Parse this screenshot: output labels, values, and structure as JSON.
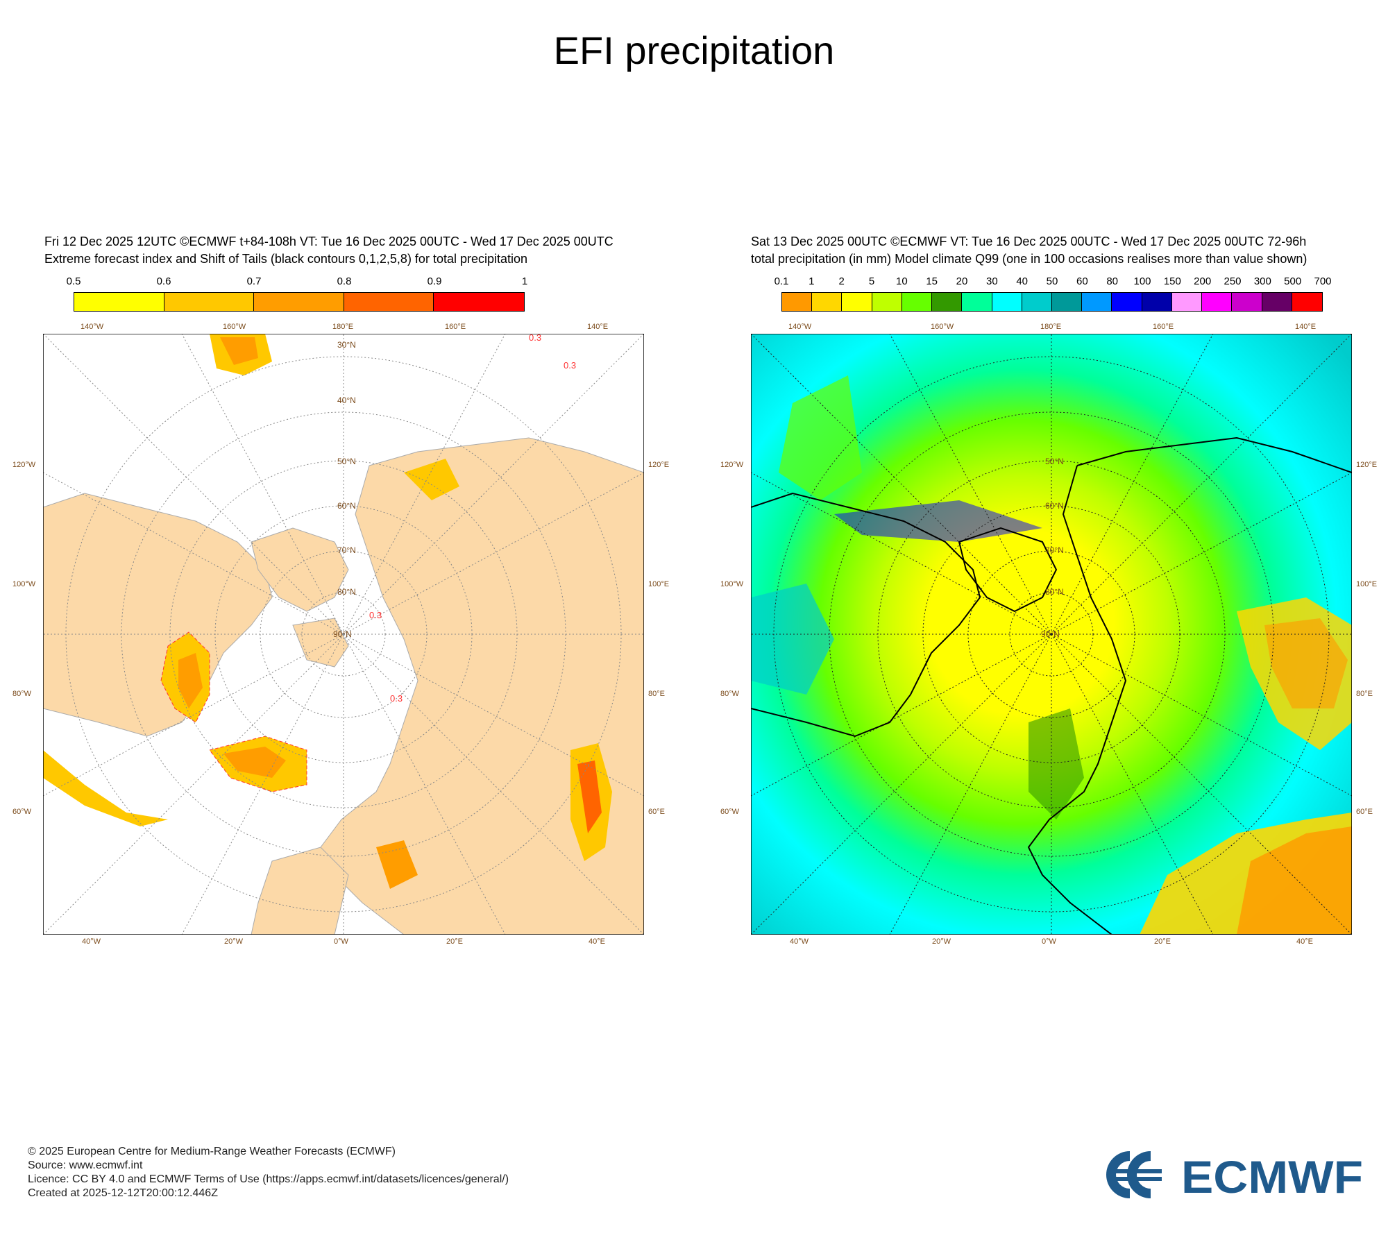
{
  "title": "EFI precipitation",
  "left_panel": {
    "header_line1": "Fri 12 Dec 2025 12UTC ©ECMWF t+84-108h  VT: Tue 16 Dec 2025 00UTC - Wed 17 Dec 2025 00UTC",
    "header_line2": "Extreme forecast index and Shift of Tails (black contours 0,1,2,5,8) for total precipitation",
    "colorbar": {
      "ticks": [
        "0.5",
        "0.6",
        "0.7",
        "0.8",
        "0.9",
        "1"
      ],
      "colors": [
        "#ffff00",
        "#ffc800",
        "#ff9d00",
        "#ff6400",
        "#ff0000"
      ]
    },
    "contour_label": "0.3",
    "land_color": "#fcd9a8",
    "ocean_color": "#ffffff"
  },
  "right_panel": {
    "header_line1": "Sat 13 Dec 2025 00UTC ©ECMWF VT: Tue 16 Dec 2025 00UTC - Wed 17 Dec 2025 00UTC   72-96h",
    "header_line2": "total precipitation (in mm)  Model climate Q99 (one in 100 occasions realises more than value shown)",
    "colorbar": {
      "ticks": [
        "0.1",
        "1",
        "2",
        "5",
        "10",
        "15",
        "20",
        "30",
        "40",
        "50",
        "60",
        "80",
        "100",
        "150",
        "200",
        "250",
        "300",
        "500",
        "700"
      ],
      "colors": [
        "#ff9900",
        "#ffd700",
        "#ffff00",
        "#bfff00",
        "#66ff00",
        "#339900",
        "#00ff99",
        "#00ffff",
        "#00cccc",
        "#009999",
        "#0099ff",
        "#0000ff",
        "#0000aa",
        "#ff99ff",
        "#ff00ff",
        "#cc00cc",
        "#660066",
        "#ff0000"
      ]
    }
  },
  "map_labels": {
    "top": [
      "140°W",
      "160°W",
      "180°E",
      "160°E",
      "140°E"
    ],
    "bottom": [
      "40°W",
      "20°W",
      "0°W",
      "20°E",
      "40°E"
    ],
    "left": [
      "120°W",
      "100°W",
      "80°W",
      "60°W"
    ],
    "right": [
      "120°E",
      "100°E",
      "80°E",
      "60°E"
    ],
    "latitudes": [
      "30°N",
      "40°N",
      "50°N",
      "60°N",
      "70°N",
      "80°N",
      "90°N"
    ]
  },
  "footer": {
    "line1": "© 2025 European Centre for Medium-Range Weather Forecasts (ECMWF)",
    "line2": "Source: www.ecmwf.int",
    "line3": "Licence: CC BY 4.0 and ECMWF Terms of Use (https://apps.ecmwf.int/datasets/licences/general/)",
    "line4": "Created at 2025-12-12T20:00:12.446Z"
  },
  "logo_text": "ECMWF",
  "colors": {
    "logo": "#1f5a8c",
    "grid": "#888888",
    "label": "#7a4a1a",
    "contour": "#ff3333"
  }
}
